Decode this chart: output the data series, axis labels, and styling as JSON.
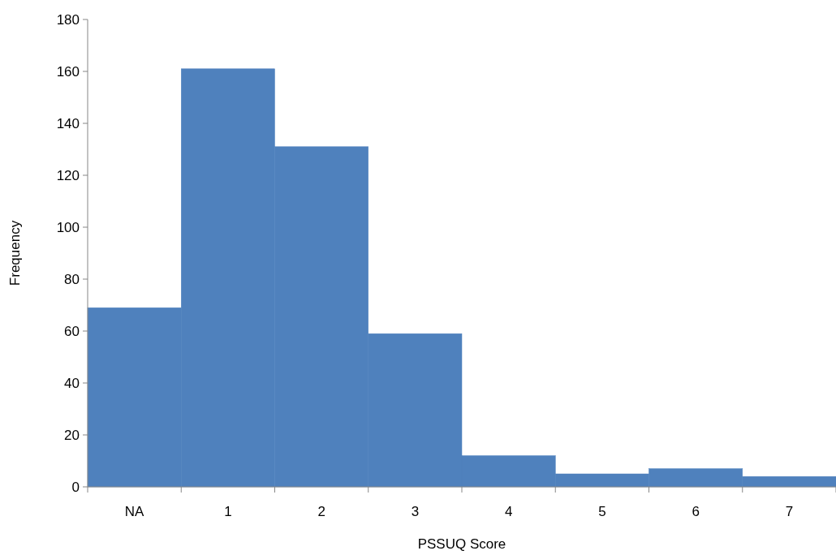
{
  "chart_data": {
    "type": "bar",
    "xlabel": "PSSUQ Score",
    "ylabel": "Frequency",
    "categories": [
      "NA",
      "1",
      "2",
      "3",
      "4",
      "5",
      "6",
      "7"
    ],
    "values": [
      69,
      161,
      131,
      59,
      12,
      5,
      7,
      4
    ],
    "color": "#4f81bd",
    "ylim": [
      0,
      180
    ],
    "yticks": [
      0,
      20,
      40,
      60,
      80,
      100,
      120,
      140,
      160,
      180
    ],
    "grid": false
  }
}
